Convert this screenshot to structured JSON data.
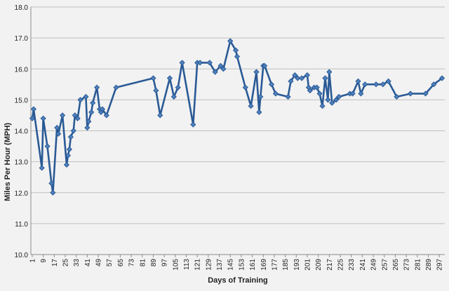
{
  "chart_data": {
    "type": "line",
    "title": "",
    "xlabel": "Days of Training",
    "ylabel": "Miles Per Hour (MPH)",
    "ylim": [
      10.0,
      18.0
    ],
    "xlim": [
      0,
      301
    ],
    "y_ticks": [
      "10.0",
      "11.0",
      "12.0",
      "13.0",
      "14.0",
      "15.0",
      "16.0",
      "17.0",
      "18.0"
    ],
    "x_ticks": [
      "1",
      "9",
      "17",
      "25",
      "33",
      "41",
      "49",
      "57",
      "65",
      "73",
      "81",
      "89",
      "97",
      "105",
      "113",
      "121",
      "129",
      "137",
      "145",
      "153",
      "161",
      "169",
      "177",
      "185",
      "193",
      "201",
      "209",
      "217",
      "225",
      "233",
      "241",
      "249",
      "257",
      "265",
      "273",
      "281",
      "289",
      "297"
    ],
    "grid": true,
    "legend": "none",
    "colors": {
      "line": "#2a5a95",
      "marker": "#4f81bd",
      "marker_edge": "#2a5a95",
      "grid": "#bfbfbf",
      "background": "#f2f2f2"
    },
    "series": [
      {
        "x": [
          1,
          2,
          8,
          9,
          12,
          15,
          16,
          19,
          20,
          23,
          26,
          27,
          28,
          29,
          31,
          32,
          34,
          36,
          40,
          41,
          42,
          44,
          45,
          48,
          50,
          51,
          52,
          55,
          62,
          89,
          91,
          94,
          101,
          104,
          107,
          110,
          118,
          121,
          123,
          130,
          134,
          138,
          140,
          145,
          149,
          150,
          156,
          160,
          164,
          166,
          167,
          169,
          170,
          175,
          178,
          187,
          189,
          192,
          194,
          197,
          201,
          202,
          203,
          206,
          208,
          210,
          212,
          214,
          216,
          217,
          219,
          222,
          224,
          232,
          234,
          238,
          240,
          243,
          251,
          256,
          260,
          266,
          276,
          287,
          293,
          299
        ],
        "y": [
          14.4,
          14.7,
          12.8,
          14.4,
          13.5,
          12.3,
          12.0,
          14.1,
          13.9,
          14.5,
          12.9,
          13.2,
          13.4,
          13.8,
          14.0,
          14.5,
          14.4,
          15.0,
          15.1,
          14.1,
          14.3,
          14.6,
          14.9,
          15.4,
          14.7,
          14.6,
          14.7,
          14.5,
          15.4,
          15.7,
          15.3,
          14.5,
          15.7,
          15.1,
          15.4,
          16.2,
          14.2,
          16.2,
          16.2,
          16.2,
          15.9,
          16.1,
          16.0,
          16.9,
          16.6,
          16.4,
          15.4,
          14.8,
          15.9,
          14.6,
          15.1,
          16.1,
          16.1,
          15.5,
          15.2,
          15.1,
          15.6,
          15.8,
          15.7,
          15.7,
          15.8,
          15.4,
          15.3,
          15.4,
          15.4,
          15.2,
          14.8,
          15.7,
          15.0,
          15.9,
          14.9,
          15.0,
          15.1,
          15.2,
          15.2,
          15.6,
          15.2,
          15.5,
          15.5,
          15.5,
          15.6,
          15.1,
          15.2,
          15.2,
          15.5,
          15.7
        ]
      }
    ]
  }
}
